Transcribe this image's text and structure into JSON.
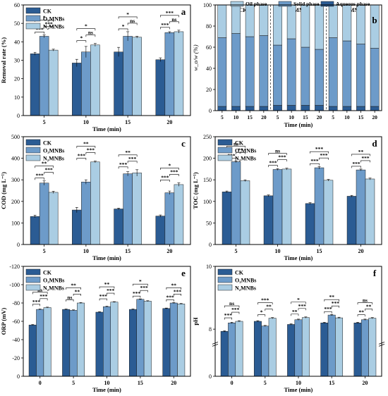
{
  "colors": {
    "ck": "#2b5c94",
    "o3": "#6d9bc9",
    "n2": "#aacde3"
  },
  "chart_data": [
    {
      "id": "a",
      "type": "bar",
      "panel_label": "a",
      "xlabel": "Time (min)",
      "ylabel": "Removal rate (%)",
      "categories": [
        "5",
        "10",
        "15",
        "20"
      ],
      "ylim": [
        0,
        60
      ],
      "yticks": [
        0,
        10,
        20,
        30,
        40,
        50,
        60
      ],
      "legend": "top-left",
      "series": [
        {
          "name": "CK",
          "values": [
            33.5,
            28.5,
            34.5,
            30.3
          ],
          "err": [
            0.8,
            2.0,
            2.5,
            1.0
          ]
        },
        {
          "name": "O₃MNBs",
          "values": [
            43.0,
            34.5,
            43.0,
            45.0
          ],
          "err": [
            0.8,
            3.0,
            2.5,
            0.5
          ]
        },
        {
          "name": "N₂MNBs",
          "values": [
            35.5,
            38.3,
            42.5,
            45.5
          ],
          "err": [
            0.5,
            0.8,
            0.5,
            0.8
          ]
        }
      ],
      "sig": [
        [
          "***",
          "*",
          "***"
        ],
        [
          "*",
          "*",
          "ns"
        ],
        [
          "*",
          "*",
          "ns"
        ],
        [
          "***",
          "***",
          "ns"
        ]
      ]
    },
    {
      "id": "b",
      "type": "bar",
      "panel_label": "b",
      "stacked": true,
      "xlabel": "Time (min)",
      "ylabel": "w_o/w (%)",
      "categories": [
        "5",
        "10",
        "15",
        "20",
        "5",
        "10",
        "15",
        "20",
        "5",
        "10",
        "15",
        "20"
      ],
      "groups": [
        "CK",
        "O₃MNBs",
        "N₂MNBs"
      ],
      "ylim": [
        0,
        100
      ],
      "yticks": [
        0,
        20,
        40,
        60,
        80,
        100
      ],
      "legend": "top-right",
      "series": [
        {
          "name": "Aqueous phase",
          "values": [
            4,
            4,
            4,
            4,
            5,
            5,
            5,
            5,
            4,
            4,
            4,
            4
          ]
        },
        {
          "name": "Solid phase",
          "values": [
            65,
            69,
            66,
            67,
            57,
            63,
            55,
            53,
            65,
            62,
            59,
            55
          ]
        },
        {
          "name": "Oil phase",
          "values": [
            31,
            27,
            30,
            29,
            38,
            32,
            40,
            42,
            31,
            34,
            37,
            41
          ]
        }
      ]
    },
    {
      "id": "c",
      "type": "bar",
      "panel_label": "c",
      "xlabel": "Time (min)",
      "ylabel": "COD (mg L⁻¹)",
      "categories": [
        "5",
        "10",
        "15",
        "20"
      ],
      "ylim": [
        0,
        500
      ],
      "yticks": [
        0,
        100,
        200,
        300,
        400,
        500
      ],
      "legend": "top-left",
      "series": [
        {
          "name": "CK",
          "values": [
            130,
            160,
            165,
            132
          ],
          "err": [
            6,
            12,
            4,
            5
          ]
        },
        {
          "name": "O₃MNBs",
          "values": [
            285,
            290,
            328,
            240
          ],
          "err": [
            10,
            10,
            10,
            8
          ]
        },
        {
          "name": "N₂MNBs",
          "values": [
            242,
            383,
            332,
            278
          ],
          "err": [
            5,
            4,
            15,
            8
          ]
        }
      ],
      "sig": [
        [
          "***",
          "**",
          "***"
        ],
        [
          "***",
          "**",
          "***"
        ],
        [
          "***",
          "**",
          "***"
        ],
        [
          "***",
          "*",
          "***"
        ]
      ]
    },
    {
      "id": "d",
      "type": "bar",
      "panel_label": "d",
      "xlabel": "Time (min)",
      "ylabel": "TOC (mg L⁻¹)",
      "categories": [
        "5",
        "10",
        "15",
        "20"
      ],
      "ylim": [
        0,
        250
      ],
      "yticks": [
        0,
        50,
        100,
        150,
        200,
        250
      ],
      "legend": "top-left",
      "series": [
        {
          "name": "CK",
          "values": [
            122,
            113,
            95,
            112
          ],
          "err": [
            2,
            2,
            2,
            2
          ]
        },
        {
          "name": "O₃MNBs",
          "values": [
            192,
            174,
            178,
            173
          ],
          "err": [
            2,
            2,
            3,
            2
          ]
        },
        {
          "name": "N₂MNBs",
          "values": [
            148,
            175,
            149,
            152
          ],
          "err": [
            2,
            2,
            2,
            2
          ]
        }
      ],
      "sig": [
        [
          "***",
          "ns",
          "**"
        ],
        [
          "***",
          "ns",
          "***"
        ],
        [
          "***",
          "***",
          "***"
        ],
        [
          "***",
          "**",
          "***"
        ]
      ]
    },
    {
      "id": "e",
      "type": "bar",
      "panel_label": "e",
      "xlabel": "Time (min)",
      "ylabel": "ORP (mV)",
      "categories": [
        "0",
        "5",
        "10",
        "15",
        "20"
      ],
      "ylim": [
        0,
        -120
      ],
      "yticks": [
        0,
        -20,
        -40,
        -60,
        -80,
        -100,
        -120
      ],
      "legend": "top-left",
      "series": [
        {
          "name": "CK",
          "values": [
            -56,
            -73,
            -70,
            -73,
            -74
          ],
          "err": [
            0.5,
            0.5,
            0.5,
            0.5,
            0.5
          ]
        },
        {
          "name": "O₃MNBs",
          "values": [
            -73,
            -72,
            -76,
            -84,
            -80
          ],
          "err": [
            0.5,
            0.5,
            0.5,
            0.5,
            0.5
          ]
        },
        {
          "name": "N₂MNBs",
          "values": [
            -75,
            -80,
            -81,
            -82,
            -79
          ],
          "err": [
            0.5,
            0.5,
            0.5,
            0.5,
            0.5
          ]
        }
      ],
      "sig": [
        [
          "***",
          "ns",
          "***"
        ],
        [
          "ns",
          "**",
          "**"
        ],
        [
          "***",
          "**",
          "***"
        ],
        [
          "***",
          "*",
          "***"
        ],
        [
          "***",
          "**",
          "***"
        ]
      ]
    },
    {
      "id": "f",
      "type": "bar",
      "panel_label": "f",
      "xlabel": "Time (min)",
      "ylabel": "pH",
      "categories": [
        "0",
        "5",
        "10",
        "15",
        "20"
      ],
      "ylim": [
        0,
        10
      ],
      "yticks": [
        0,
        8,
        10
      ],
      "axis_break": [
        1,
        7.5
      ],
      "legend": "top-left",
      "series": [
        {
          "name": "CK",
          "values": [
            7.93,
            8.25,
            8.15,
            8.2,
            8.2
          ],
          "err": [
            0.02,
            0.02,
            0.02,
            0.02,
            0.02
          ]
        },
        {
          "name": "O₃MNBs",
          "values": [
            8.2,
            8.1,
            8.3,
            8.45,
            8.3
          ],
          "err": [
            0.02,
            0.02,
            0.02,
            0.02,
            0.02
          ]
        },
        {
          "name": "N₂MNBs",
          "values": [
            8.25,
            8.35,
            8.37,
            8.36,
            8.35
          ],
          "err": [
            0.02,
            0.02,
            0.02,
            0.02,
            0.02
          ]
        }
      ],
      "sig": [
        [
          "***",
          "ns",
          "***"
        ],
        [
          "*",
          "***",
          "**"
        ],
        [
          "**",
          "*",
          "***"
        ],
        [
          "***",
          "**",
          "***"
        ],
        [
          "**",
          "ns",
          "**"
        ]
      ]
    }
  ]
}
